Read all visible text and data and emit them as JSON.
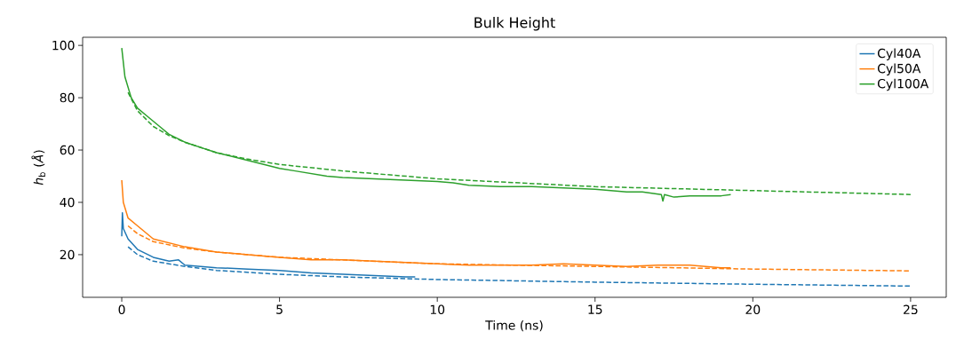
{
  "chart_data": {
    "type": "line",
    "title": "Bulk Height",
    "xlabel": "Time (ns)",
    "ylabel": "*h*$_{b}$   (*Å*)",
    "xlim": [
      -1.24,
      26.13
    ],
    "ylim": [
      3.7,
      103.1
    ],
    "xticks": [
      0,
      5,
      10,
      15,
      20,
      25
    ],
    "yticks": [
      20,
      40,
      60,
      80,
      100
    ],
    "legend": "top right",
    "line_style": "solid",
    "series": [
      {
        "name": "Cyl40A",
        "color": "#1f77b4",
        "x": [
          0,
          0.02,
          0.05,
          0.2,
          0.5,
          1,
          1.5,
          1.8,
          2,
          3,
          4,
          5,
          6,
          7,
          8,
          9,
          9.3
        ],
        "values": [
          27,
          36,
          30,
          26,
          22,
          19,
          17.5,
          18,
          16,
          15,
          14.5,
          14,
          13,
          12.5,
          12,
          11.5,
          11.5
        ]
      },
      {
        "name": "Cyl50A",
        "color": "#ff7f0e",
        "x": [
          0,
          0.05,
          0.2,
          0.5,
          1,
          1.5,
          2,
          3,
          4,
          5,
          6,
          7,
          8,
          9,
          10,
          11,
          12,
          13,
          14,
          15,
          16,
          17,
          18,
          19,
          19.3
        ],
        "values": [
          48.5,
          40,
          34,
          31,
          26,
          24.5,
          23,
          21,
          20,
          19,
          18,
          18,
          17.5,
          17,
          16.5,
          16,
          16,
          16,
          16.5,
          16,
          15.5,
          16,
          16,
          15,
          15
        ]
      },
      {
        "name": "Cyl100A",
        "color": "#2ca02c",
        "x": [
          0,
          0.1,
          0.3,
          0.5,
          0.8,
          1.2,
          1.5,
          2,
          2.5,
          3,
          3.5,
          4,
          4.5,
          5,
          5.5,
          6,
          6.5,
          7,
          8,
          9,
          10,
          10.5,
          11,
          12,
          13,
          14,
          15,
          16,
          16.5,
          17.1,
          17.15,
          17.2,
          17.5,
          18,
          19,
          19.3
        ],
        "values": [
          99,
          88,
          80,
          76,
          73,
          69,
          66,
          63,
          61,
          59,
          57.5,
          56,
          54.5,
          53,
          52,
          51,
          50,
          49.5,
          49,
          48.5,
          48,
          47.5,
          46.5,
          46,
          46,
          45.5,
          45,
          44,
          44,
          43,
          40.5,
          43,
          42,
          42.5,
          42.5,
          43
        ]
      },
      {
        "color": "#1f77b4",
        "line_style": "dashed",
        "x": [
          0.2,
          0.5,
          1,
          2,
          3,
          5,
          7,
          10,
          15,
          20,
          25
        ],
        "values": [
          23,
          20,
          17.5,
          15.5,
          14,
          12.5,
          11.5,
          10.5,
          9.5,
          8.7,
          8
        ]
      },
      {
        "color": "#ff7f0e",
        "line_style": "dashed",
        "x": [
          0.2,
          0.5,
          1,
          2,
          3,
          5,
          7,
          10,
          15,
          20,
          25
        ],
        "values": [
          31,
          28,
          25,
          22.5,
          21,
          19,
          18,
          16.5,
          15.5,
          14.5,
          13.8
        ]
      },
      {
        "color": "#2ca02c",
        "line_style": "dashed",
        "x": [
          0.2,
          0.5,
          1,
          1.5,
          2,
          3,
          4,
          5,
          7,
          10,
          15,
          20,
          25
        ],
        "values": [
          82,
          75,
          69,
          65.5,
          63,
          59,
          56.5,
          54.5,
          52,
          49,
          46,
          44.5,
          43
        ]
      }
    ]
  }
}
